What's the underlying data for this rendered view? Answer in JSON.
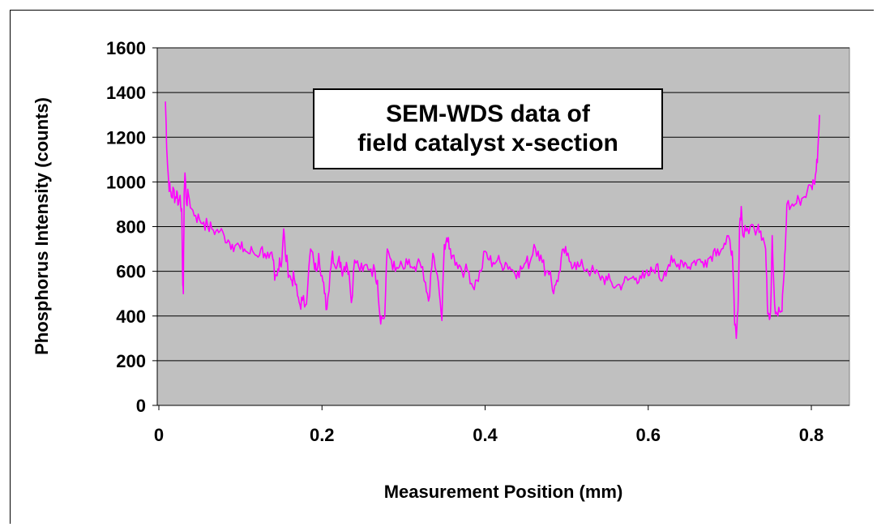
{
  "chart_data": {
    "type": "line",
    "title": "",
    "xlabel": "Measurement Position (mm)",
    "ylabel": "Phosphorus Intensity (counts)",
    "xlim": [
      0,
      0.84
    ],
    "ylim": [
      0,
      1600
    ],
    "x_ticks": [
      "0",
      "0.2",
      "0.4",
      "0.6",
      "0.8"
    ],
    "y_ticks": [
      "0",
      "200",
      "400",
      "600",
      "800",
      "1000",
      "1200",
      "1400",
      "1600"
    ],
    "grid": "horizontal",
    "plot_background": "#c0c0c0",
    "annotation": "SEM-WDS data of\nfield catalyst x-section",
    "series": [
      {
        "color": "#ff00ff",
        "points": [
          [
            0.008,
            1360
          ],
          [
            0.009,
            1250
          ],
          [
            0.01,
            1120
          ],
          [
            0.012,
            1000
          ],
          [
            0.014,
            960
          ],
          [
            0.016,
            930
          ],
          [
            0.018,
            970
          ],
          [
            0.02,
            920
          ],
          [
            0.022,
            960
          ],
          [
            0.024,
            900
          ],
          [
            0.026,
            940
          ],
          [
            0.028,
            880
          ],
          [
            0.029,
            600
          ],
          [
            0.03,
            500
          ],
          [
            0.031,
            950
          ],
          [
            0.032,
            1040
          ],
          [
            0.034,
            900
          ],
          [
            0.036,
            950
          ],
          [
            0.04,
            880
          ],
          [
            0.045,
            850
          ],
          [
            0.05,
            830
          ],
          [
            0.055,
            820
          ],
          [
            0.06,
            800
          ],
          [
            0.065,
            790
          ],
          [
            0.07,
            780
          ],
          [
            0.075,
            780
          ],
          [
            0.08,
            760
          ],
          [
            0.085,
            740
          ],
          [
            0.09,
            720
          ],
          [
            0.095,
            720
          ],
          [
            0.1,
            700
          ],
          [
            0.105,
            700
          ],
          [
            0.11,
            680
          ],
          [
            0.115,
            690
          ],
          [
            0.12,
            670
          ],
          [
            0.125,
            700
          ],
          [
            0.13,
            680
          ],
          [
            0.135,
            660
          ],
          [
            0.14,
            650
          ],
          [
            0.142,
            560
          ],
          [
            0.145,
            580
          ],
          [
            0.148,
            660
          ],
          [
            0.15,
            620
          ],
          [
            0.153,
            790
          ],
          [
            0.155,
            680
          ],
          [
            0.158,
            620
          ],
          [
            0.16,
            580
          ],
          [
            0.163,
            560
          ],
          [
            0.166,
            570
          ],
          [
            0.17,
            490
          ],
          [
            0.173,
            450
          ],
          [
            0.176,
            470
          ],
          [
            0.18,
            450
          ],
          [
            0.183,
            560
          ],
          [
            0.186,
            700
          ],
          [
            0.19,
            640
          ],
          [
            0.193,
            600
          ],
          [
            0.196,
            680
          ],
          [
            0.2,
            580
          ],
          [
            0.203,
            500
          ],
          [
            0.206,
            430
          ],
          [
            0.21,
            600
          ],
          [
            0.213,
            690
          ],
          [
            0.216,
            620
          ],
          [
            0.22,
            650
          ],
          [
            0.223,
            640
          ],
          [
            0.226,
            600
          ],
          [
            0.23,
            640
          ],
          [
            0.233,
            600
          ],
          [
            0.236,
            460
          ],
          [
            0.24,
            650
          ],
          [
            0.245,
            620
          ],
          [
            0.25,
            600
          ],
          [
            0.255,
            630
          ],
          [
            0.26,
            610
          ],
          [
            0.265,
            600
          ],
          [
            0.268,
            560
          ],
          [
            0.271,
            400
          ],
          [
            0.274,
            390
          ],
          [
            0.277,
            400
          ],
          [
            0.28,
            700
          ],
          [
            0.285,
            650
          ],
          [
            0.29,
            600
          ],
          [
            0.295,
            620
          ],
          [
            0.3,
            610
          ],
          [
            0.305,
            630
          ],
          [
            0.31,
            620
          ],
          [
            0.315,
            600
          ],
          [
            0.32,
            640
          ],
          [
            0.325,
            560
          ],
          [
            0.328,
            510
          ],
          [
            0.332,
            490
          ],
          [
            0.336,
            680
          ],
          [
            0.34,
            600
          ],
          [
            0.344,
            500
          ],
          [
            0.347,
            380
          ],
          [
            0.35,
            720
          ],
          [
            0.353,
            750
          ],
          [
            0.356,
            700
          ],
          [
            0.36,
            670
          ],
          [
            0.365,
            640
          ],
          [
            0.37,
            620
          ],
          [
            0.375,
            600
          ],
          [
            0.38,
            600
          ],
          [
            0.385,
            530
          ],
          [
            0.39,
            560
          ],
          [
            0.395,
            600
          ],
          [
            0.4,
            690
          ],
          [
            0.405,
            650
          ],
          [
            0.41,
            640
          ],
          [
            0.415,
            650
          ],
          [
            0.42,
            630
          ],
          [
            0.425,
            640
          ],
          [
            0.43,
            620
          ],
          [
            0.435,
            600
          ],
          [
            0.44,
            600
          ],
          [
            0.445,
            610
          ],
          [
            0.45,
            640
          ],
          [
            0.455,
            640
          ],
          [
            0.46,
            720
          ],
          [
            0.465,
            690
          ],
          [
            0.47,
            640
          ],
          [
            0.475,
            600
          ],
          [
            0.48,
            600
          ],
          [
            0.484,
            500
          ],
          [
            0.488,
            560
          ],
          [
            0.492,
            600
          ],
          [
            0.496,
            700
          ],
          [
            0.5,
            670
          ],
          [
            0.505,
            640
          ],
          [
            0.51,
            640
          ],
          [
            0.515,
            620
          ],
          [
            0.52,
            620
          ],
          [
            0.525,
            610
          ],
          [
            0.53,
            600
          ],
          [
            0.535,
            590
          ],
          [
            0.54,
            580
          ],
          [
            0.545,
            570
          ],
          [
            0.55,
            560
          ],
          [
            0.555,
            550
          ],
          [
            0.56,
            530
          ],
          [
            0.565,
            540
          ],
          [
            0.57,
            550
          ],
          [
            0.575,
            560
          ],
          [
            0.58,
            570
          ],
          [
            0.585,
            570
          ],
          [
            0.59,
            580
          ],
          [
            0.595,
            570
          ],
          [
            0.6,
            580
          ],
          [
            0.605,
            600
          ],
          [
            0.61,
            630
          ],
          [
            0.615,
            560
          ],
          [
            0.62,
            600
          ],
          [
            0.625,
            630
          ],
          [
            0.63,
            640
          ],
          [
            0.635,
            620
          ],
          [
            0.64,
            650
          ],
          [
            0.645,
            640
          ],
          [
            0.65,
            620
          ],
          [
            0.655,
            640
          ],
          [
            0.66,
            650
          ],
          [
            0.665,
            640
          ],
          [
            0.67,
            650
          ],
          [
            0.675,
            660
          ],
          [
            0.68,
            690
          ],
          [
            0.685,
            700
          ],
          [
            0.69,
            700
          ],
          [
            0.695,
            720
          ],
          [
            0.7,
            740
          ],
          [
            0.703,
            690
          ],
          [
            0.706,
            360
          ],
          [
            0.708,
            300
          ],
          [
            0.71,
            420
          ],
          [
            0.712,
            800
          ],
          [
            0.714,
            890
          ],
          [
            0.716,
            760
          ],
          [
            0.72,
            780
          ],
          [
            0.725,
            800
          ],
          [
            0.73,
            790
          ],
          [
            0.735,
            810
          ],
          [
            0.738,
            780
          ],
          [
            0.741,
            750
          ],
          [
            0.744,
            700
          ],
          [
            0.746,
            450
          ],
          [
            0.748,
            410
          ],
          [
            0.75,
            420
          ],
          [
            0.752,
            760
          ],
          [
            0.755,
            450
          ],
          [
            0.758,
            410
          ],
          [
            0.761,
            420
          ],
          [
            0.764,
            420
          ],
          [
            0.766,
            560
          ],
          [
            0.768,
            700
          ],
          [
            0.77,
            900
          ],
          [
            0.775,
            890
          ],
          [
            0.78,
            900
          ],
          [
            0.785,
            920
          ],
          [
            0.79,
            930
          ],
          [
            0.795,
            960
          ],
          [
            0.8,
            980
          ],
          [
            0.803,
            1000
          ],
          [
            0.806,
            1050
          ],
          [
            0.808,
            1150
          ],
          [
            0.81,
            1300
          ]
        ]
      }
    ]
  }
}
